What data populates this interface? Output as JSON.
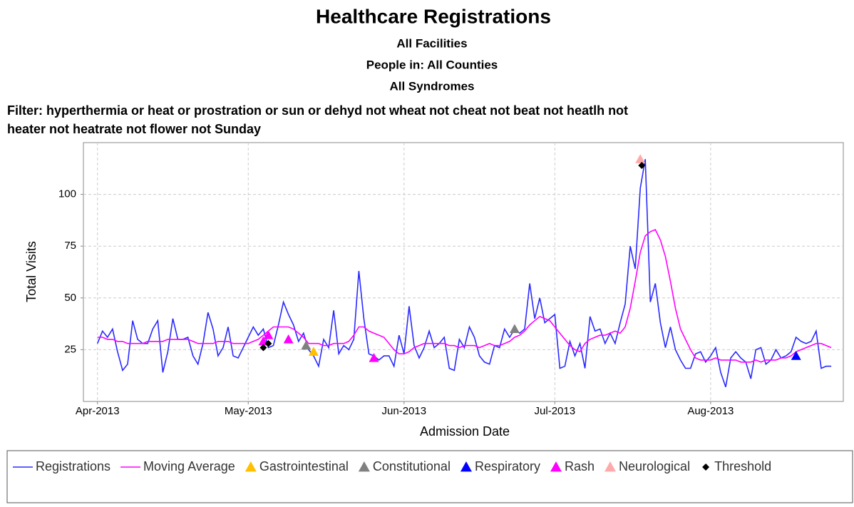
{
  "chart_data": {
    "type": "line",
    "title": "Healthcare Registrations",
    "subtitles": [
      "All Facilities",
      "People in: All Counties",
      "All Syndromes"
    ],
    "filter": [
      "Filter: hyperthermia or heat or prostration or sun or dehyd not wheat not cheat not beat not heatlh not",
      "heater not heatrate not flower not Sunday"
    ],
    "x_label": "Admission Date",
    "y_label": "Total Visits",
    "xlim": [
      -2.8,
      148.4
    ],
    "xticks": [
      {
        "value": 0,
        "label": "Apr-2013"
      },
      {
        "value": 30,
        "label": "May-2013"
      },
      {
        "value": 61,
        "label": "Jun-2013"
      },
      {
        "value": 91,
        "label": "Jul-2013"
      },
      {
        "value": 122,
        "label": "Aug-2013"
      }
    ],
    "ylim": [
      0,
      125
    ],
    "yticks": [
      25,
      50,
      75,
      100
    ],
    "grid": true,
    "x": [
      0,
      1,
      2,
      3,
      4,
      5,
      6,
      7,
      8,
      9,
      10,
      11,
      12,
      13,
      14,
      15,
      16,
      17,
      18,
      19,
      20,
      21,
      22,
      23,
      24,
      25,
      26,
      27,
      28,
      29,
      30,
      31,
      32,
      33,
      34,
      35,
      36,
      37,
      38,
      39,
      40,
      41,
      42,
      43,
      44,
      45,
      46,
      47,
      48,
      49,
      50,
      51,
      52,
      53,
      54,
      55,
      56,
      57,
      58,
      59,
      60,
      61,
      62,
      63,
      64,
      65,
      66,
      67,
      68,
      69,
      70,
      71,
      72,
      73,
      74,
      75,
      76,
      77,
      78,
      79,
      80,
      81,
      82,
      83,
      84,
      85,
      86,
      87,
      88,
      89,
      90,
      91,
      92,
      93,
      94,
      95,
      96,
      97,
      98,
      99,
      100,
      101,
      102,
      103,
      104,
      105,
      106,
      107,
      108,
      109,
      110,
      111,
      112,
      113,
      114,
      115,
      116,
      117,
      118,
      119,
      120,
      121,
      122,
      123,
      124,
      125,
      126,
      127,
      128,
      129,
      130,
      131,
      132,
      133,
      134,
      135,
      136,
      137,
      138,
      139,
      140,
      141,
      142,
      143,
      144,
      145,
      146
    ],
    "series": [
      {
        "name": "Registrations",
        "color": "#2a2aff",
        "kind": "line",
        "values": [
          28,
          34,
          31,
          35,
          24,
          15,
          18,
          39,
          30,
          28,
          28,
          35,
          39,
          14,
          24,
          40,
          30,
          30,
          31,
          22,
          18,
          28,
          43,
          35,
          22,
          26,
          36,
          22,
          21,
          26,
          31,
          36,
          32,
          35,
          26,
          27,
          37,
          48,
          42,
          37,
          29,
          33,
          25,
          22,
          17,
          30,
          26,
          44,
          23,
          27,
          25,
          30,
          63,
          40,
          23,
          22,
          20,
          22,
          22,
          17,
          32,
          23,
          46,
          27,
          21,
          26,
          34,
          26,
          28,
          31,
          16,
          15,
          30,
          26,
          36,
          31,
          22,
          19,
          18,
          27,
          26,
          35,
          31,
          35,
          33,
          35,
          57,
          40,
          50,
          38,
          40,
          42,
          16,
          17,
          29,
          22,
          28,
          16,
          41,
          34,
          35,
          28,
          33,
          28,
          38,
          47,
          75,
          64,
          103,
          117,
          48,
          57,
          38,
          26,
          36,
          25,
          20,
          16,
          16,
          23,
          24,
          19,
          22,
          26,
          14,
          7,
          21,
          24,
          21,
          19,
          11,
          25,
          26,
          18,
          20,
          25,
          21,
          22,
          24,
          31,
          29,
          28,
          29,
          34,
          16,
          17,
          17
        ]
      },
      {
        "name": "Moving Average",
        "color": "#ff00ff",
        "kind": "line",
        "values": [
          31,
          31,
          30,
          30,
          29,
          29,
          28,
          28,
          28,
          28,
          29,
          29,
          29,
          29,
          30,
          30,
          30,
          30,
          30,
          29,
          28,
          28,
          28,
          28,
          29,
          29,
          29,
          28,
          28,
          28,
          28,
          29,
          30,
          32,
          34,
          36,
          36,
          36,
          36,
          35,
          33,
          31,
          28,
          28,
          28,
          27,
          27,
          28,
          28,
          28,
          29,
          32,
          36,
          36,
          34,
          33,
          32,
          31,
          28,
          25,
          23,
          23,
          24,
          26,
          27,
          28,
          28,
          28,
          28,
          28,
          27,
          27,
          26,
          27,
          27,
          27,
          26,
          27,
          28,
          27,
          27,
          28,
          29,
          31,
          32,
          34,
          37,
          39,
          41,
          40,
          39,
          36,
          33,
          30,
          27,
          25,
          24,
          28,
          30,
          31,
          32,
          32,
          33,
          34,
          33,
          36,
          45,
          58,
          72,
          80,
          82,
          83,
          78,
          70,
          58,
          45,
          35,
          30,
          25,
          21,
          20,
          20,
          20,
          21,
          20,
          20,
          20,
          20,
          19,
          19,
          19,
          20,
          19,
          20,
          20,
          20,
          21,
          21,
          22,
          24,
          25,
          26,
          27,
          28,
          28,
          27,
          26
        ]
      },
      {
        "name": "Gastrointestinal",
        "color": "#ffc000",
        "kind": "triangle",
        "x": [
          43
        ],
        "values": [
          24
        ]
      },
      {
        "name": "Constitutional",
        "color": "#808080",
        "kind": "triangle",
        "x": [
          41.5,
          83
        ],
        "values": [
          27,
          35
        ]
      },
      {
        "name": "Respiratory",
        "color": "#0000ff",
        "kind": "triangle",
        "x": [
          139
        ],
        "values": [
          22
        ]
      },
      {
        "name": "Rash",
        "color": "#ff00ff",
        "kind": "triangle",
        "x": [
          33,
          34,
          38,
          55
        ],
        "values": [
          29,
          32,
          30,
          21
        ]
      },
      {
        "name": "Neurological",
        "color": "#ffaaaa",
        "kind": "triangle",
        "x": [
          108
        ],
        "values": [
          117
        ]
      },
      {
        "name": "Threshold",
        "color": "#000000",
        "kind": "diamond",
        "x": [
          33,
          34,
          108.3
        ],
        "values": [
          26,
          28,
          114
        ]
      }
    ]
  }
}
